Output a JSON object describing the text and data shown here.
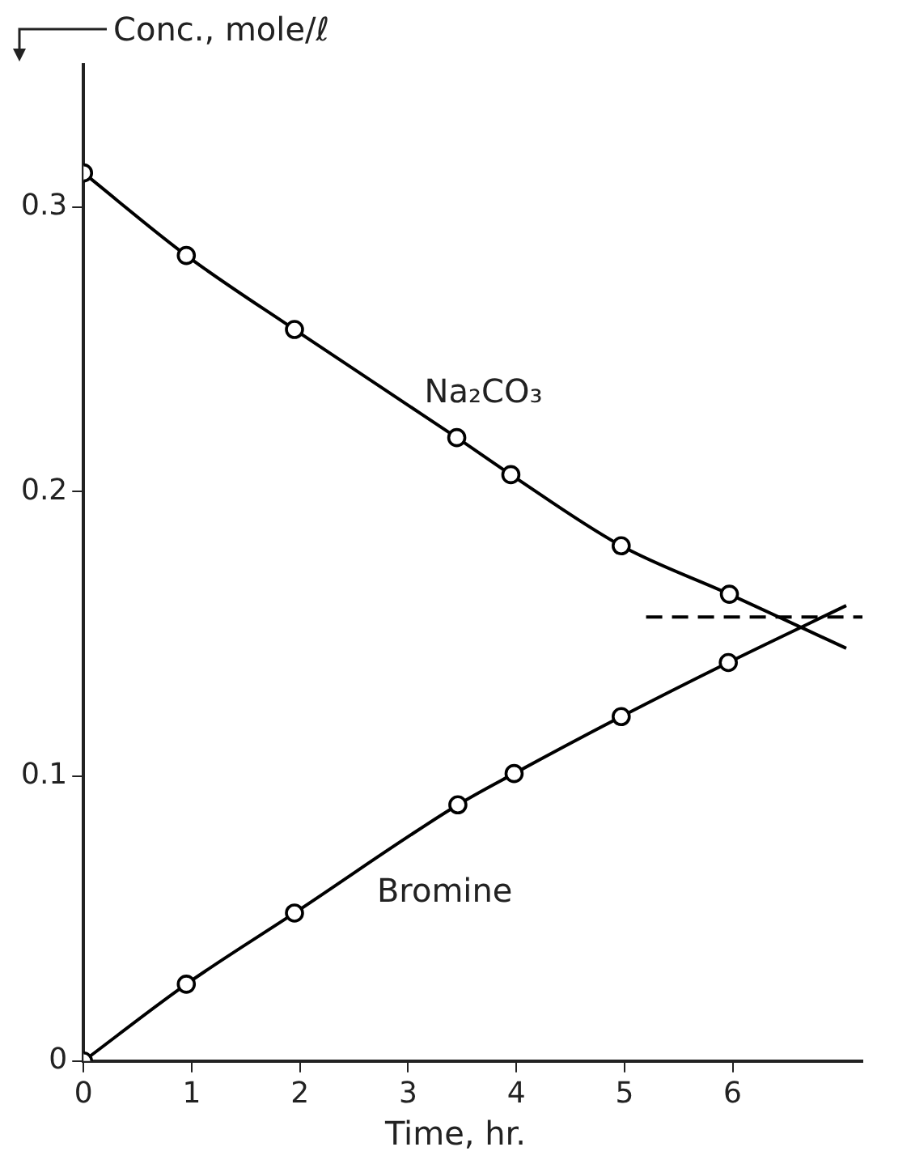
{
  "chart_data": {
    "type": "line",
    "xlabel": "Time, hr.",
    "ylabel": "Conc., mole/ℓ",
    "xlim": [
      0,
      7.2
    ],
    "ylim": [
      0,
      0.35
    ],
    "xticks": [
      0,
      1,
      2,
      3,
      4,
      5,
      6
    ],
    "yticks": [
      0,
      0.1,
      0.2,
      0.3
    ],
    "grid": false,
    "legend": false,
    "series": [
      {
        "name": "Na₂CO₃",
        "type": "scatter",
        "marker": "circle",
        "color": "#000000",
        "x": [
          0,
          0.95,
          1.95,
          3.45,
          3.95,
          4.97,
          5.97
        ],
        "values": [
          0.312,
          0.283,
          0.257,
          0.219,
          0.206,
          0.181,
          0.164
        ]
      },
      {
        "name": "Bromine",
        "type": "scatter",
        "marker": "circle",
        "color": "#000000",
        "x": [
          0,
          0.95,
          1.95,
          3.46,
          3.98,
          4.97,
          5.96
        ],
        "values": [
          0,
          0.027,
          0.052,
          0.09,
          0.101,
          0.121,
          0.14
        ]
      },
      {
        "type": "line",
        "marker": "none",
        "line_style": "solid",
        "color": "#000000",
        "x": [
          0,
          0.95,
          1.95,
          3.45,
          3.95,
          4.97,
          5.97,
          7.05
        ],
        "values": [
          0.312,
          0.283,
          0.257,
          0.219,
          0.206,
          0.181,
          0.164,
          0.145
        ]
      },
      {
        "type": "line",
        "marker": "none",
        "line_style": "solid",
        "color": "#000000",
        "x": [
          0,
          0.95,
          1.95,
          3.46,
          3.98,
          4.97,
          5.96,
          7.05
        ],
        "values": [
          0,
          0.027,
          0.052,
          0.09,
          0.101,
          0.121,
          0.14,
          0.16
        ]
      },
      {
        "type": "line",
        "marker": "none",
        "line_style": "dashed",
        "color": "#000000",
        "x": [
          5.2,
          7.2
        ],
        "values": [
          0.156,
          0.156
        ]
      }
    ]
  }
}
